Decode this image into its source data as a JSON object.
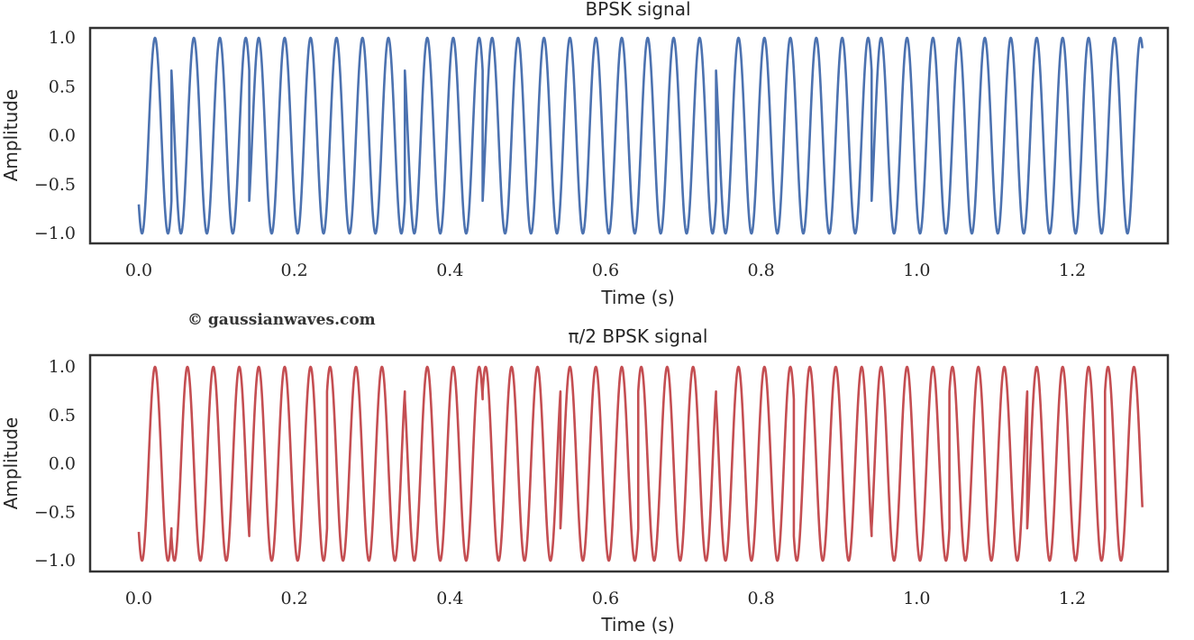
{
  "watermark": "© gaussianwaves.com",
  "chart_data": [
    {
      "type": "line",
      "title": "BPSK signal",
      "xlabel": "Time (s)",
      "ylabel": "Amplitude",
      "xlim": [
        -0.06,
        1.33
      ],
      "ylim": [
        -1.05,
        1.05
      ],
      "xticks": [
        "0.0",
        "0.2",
        "0.4",
        "0.6",
        "0.8",
        "1.0",
        "1.2"
      ],
      "yticks": [
        "1.0",
        "0.5",
        "0.0",
        "−0.5",
        "−1.0"
      ],
      "grid": false,
      "color": "#4c72b0",
      "x_range": [
        0,
        1.29
      ],
      "carrier_frequency_hz": 30,
      "symbol_boundaries_s": [
        0.042,
        0.142,
        0.242,
        0.342,
        0.442,
        0.542,
        0.642,
        0.742,
        0.842,
        0.942,
        1.042,
        1.142,
        1.242
      ],
      "segment_phase_deg": [
        0,
        180,
        0,
        0,
        180,
        0,
        0,
        0,
        180,
        180,
        0,
        0,
        0,
        0
      ]
    },
    {
      "type": "line",
      "title": "π/2 BPSK signal",
      "xlabel": "Time (s)",
      "ylabel": "Amplitude",
      "xlim": [
        -0.06,
        1.33
      ],
      "ylim": [
        -1.05,
        1.05
      ],
      "xticks": [
        "0.0",
        "0.2",
        "0.4",
        "0.6",
        "0.8",
        "1.0",
        "1.2"
      ],
      "yticks": [
        "1.0",
        "0.5",
        "0.0",
        "−0.5",
        "−1.0"
      ],
      "grid": false,
      "color": "#c44e52",
      "x_range": [
        0,
        1.29
      ],
      "carrier_frequency_hz": 30,
      "symbol_boundaries_s": [
        0.042,
        0.142,
        0.242,
        0.342,
        0.442,
        0.542,
        0.642,
        0.742,
        0.842,
        0.942,
        1.042,
        1.142,
        1.242
      ],
      "segment_phase_deg": [
        0,
        270,
        0,
        90,
        180,
        90,
        0,
        90,
        180,
        270,
        0,
        90,
        0,
        90
      ]
    }
  ]
}
